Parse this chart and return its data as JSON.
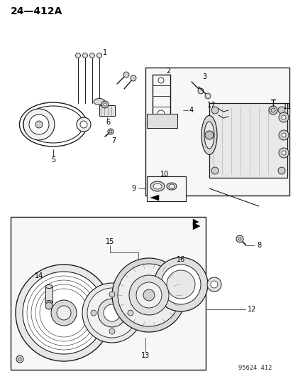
{
  "title": "24—412A",
  "bg_color": "#ffffff",
  "line_color": "#1a1a1a",
  "watermark": "95624  412",
  "fig_width": 4.14,
  "fig_height": 5.33,
  "dpi": 100
}
